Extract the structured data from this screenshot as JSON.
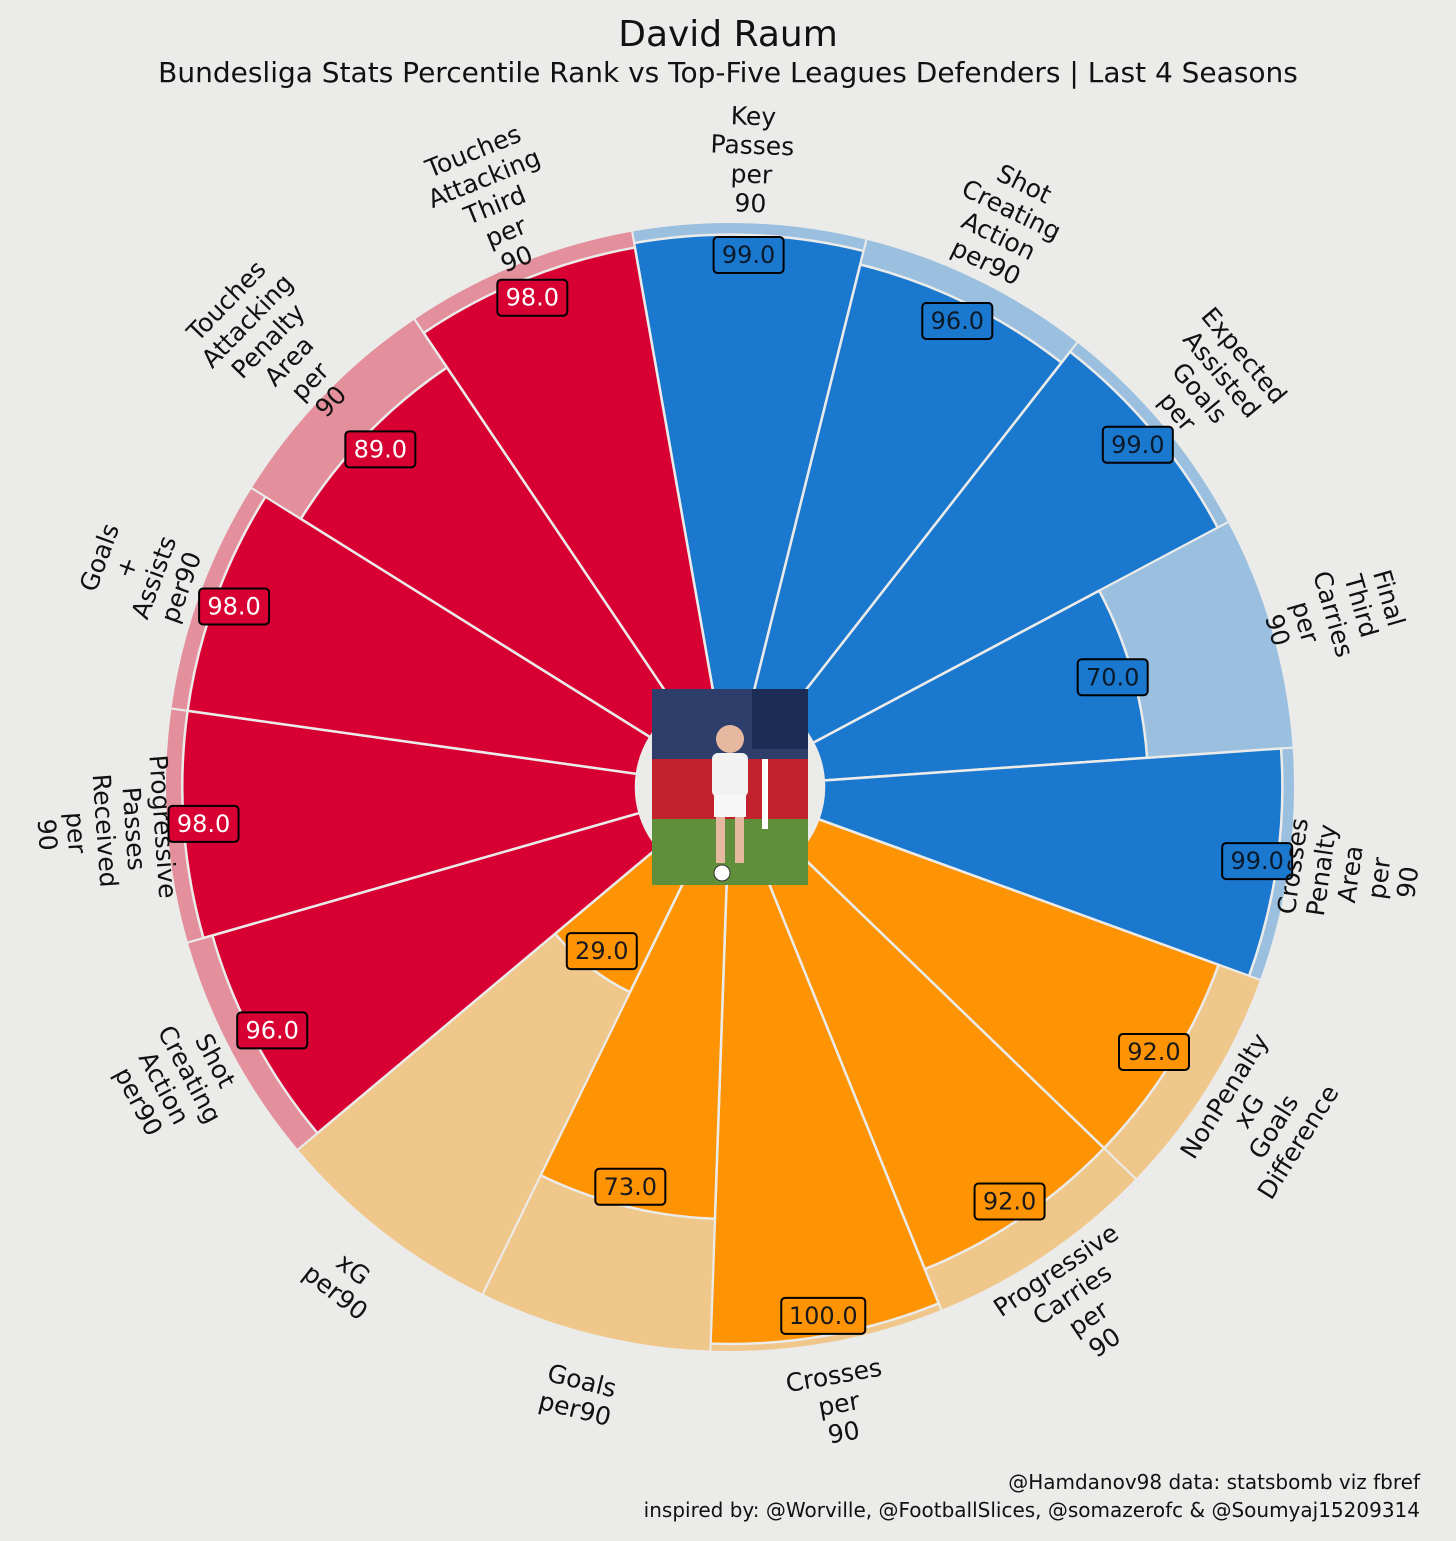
{
  "header": {
    "title": "David Raum",
    "subtitle": "Bundesliga Stats Percentile Rank vs Top-Five Leagues Defenders | Last 4 Seasons"
  },
  "footer": {
    "line1": "@Hamdanov98 data: statsbomb viz fbref",
    "line2": "inspired by: @Worville, @FootballSlices, @somazerofc & @Soumyaj15209314"
  },
  "colors": {
    "background": "#ebebe9",
    "attacking": "#1b78cf",
    "attacking_light": "#9abfdf",
    "possession": "#d80033",
    "possession_light": "#e3909c",
    "shooting": "#fe9303",
    "shooting_light": "#f0c78b"
  },
  "chart_data": {
    "type": "polar-bar",
    "title": "David Raum",
    "subtitle": "Bundesliga Stats Percentile Rank vs Top-Five Leagues Defenders | Last 4 Seasons",
    "ylim": [
      0,
      100
    ],
    "center_image": "player-photo",
    "categories": [
      {
        "label": "Key\nPasses\nper\n90",
        "value": 99.0,
        "group": "attacking"
      },
      {
        "label": "Shot\nCreating\nAction\nper90",
        "value": 96.0,
        "group": "attacking"
      },
      {
        "label": "Expected\nAssisted\nGoals\nper",
        "value": 99.0,
        "group": "attacking"
      },
      {
        "label": "Final\nThird\nCarries\nper\n90",
        "value": 70.0,
        "group": "attacking"
      },
      {
        "label": "Crosses\nPenalty\nArea\nper\n90",
        "value": 99.0,
        "group": "attacking"
      },
      {
        "label": "NonPenalty\nxG\nGoals\nDifference",
        "value": 92.0,
        "group": "shooting"
      },
      {
        "label": "Progressive\nCarries\nper\n90",
        "value": 92.0,
        "group": "shooting"
      },
      {
        "label": "Crosses\nper\n90",
        "value": 100.0,
        "group": "shooting"
      },
      {
        "label": "Goals\nper90",
        "value": 73.0,
        "group": "shooting"
      },
      {
        "label": "xG\nper90",
        "value": 29.0,
        "group": "shooting"
      },
      {
        "label": "Shot\nCreating\nAction\nper90",
        "value": 96.0,
        "group": "possession"
      },
      {
        "label": "Progressive\nPasses\nReceived\nper\n90",
        "value": 98.0,
        "group": "possession"
      },
      {
        "label": "Goals\n+\nAssists\nper90",
        "value": 98.0,
        "group": "possession"
      },
      {
        "label": "Touches\nAttacking\nPenalty\nArea\nper\n90",
        "value": 89.0,
        "group": "possession"
      },
      {
        "label": "Touches\nAttacking\nThird\nper\n90",
        "value": 98.0,
        "group": "possession"
      }
    ]
  }
}
